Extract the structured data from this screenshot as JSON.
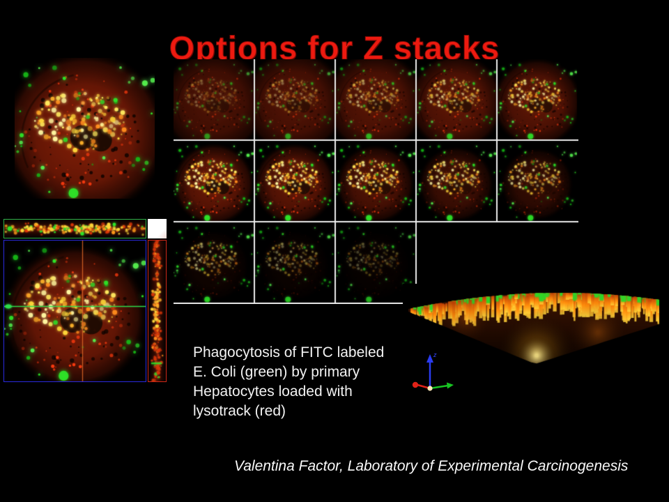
{
  "slide": {
    "title": "Options for Z stacks",
    "caption": "Phagocytosis of FITC labeled\nE. Coli (green) by primary\nHepatocytes loaded with\nlysotrack (red)",
    "credit": "Valentina Factor, Laboratory of Experimental Carcinogenesis"
  },
  "colors": {
    "background": "#000000",
    "title_fill": "#ed1a10",
    "title_outline": "#7e0c06",
    "text_white": "#f2f2f2",
    "grid_line": "#ececec",
    "ortho_top_border": "#2db34a",
    "ortho_main_border": "#2a2ae0",
    "ortho_side_border": "#d02818",
    "crosshair_green": "#2ddc4b",
    "crosshair_orange": "#e06a28",
    "axis_z_blue": "#2a3cf0",
    "axis_x_red": "#e02218",
    "axis_y_green": "#18c422",
    "cell_body_red": "#8a2108",
    "cluster_palette": [
      "#fff7a0",
      "#ffd83a",
      "#ffb32a",
      "#ff8d1d",
      "#ffea5e"
    ],
    "green_palette": [
      "#2ee228",
      "#55f04e",
      "#16b616"
    ]
  },
  "panels": {
    "single_view": {
      "body": 0.95,
      "cluster": 1.0,
      "specks": 0.9,
      "green": 1.0,
      "nuclei": 0.92,
      "bodyR": 0.6
    },
    "ortho_main": {
      "body": 0.9,
      "cluster": 1.0,
      "specks": 0.95,
      "green": 1.0,
      "nuclei": 0.9,
      "bodyR": 0.52
    },
    "montage": {
      "columns": 5,
      "rows": 3,
      "slices": [
        {
          "row": 0,
          "col": 0,
          "body": 0.58,
          "cluster": 0.2,
          "specks": 0.55,
          "green": 0.45,
          "nuclei": 0.5,
          "bodyR": 0.68
        },
        {
          "row": 0,
          "col": 1,
          "body": 0.62,
          "cluster": 0.3,
          "specks": 0.6,
          "green": 0.5,
          "nuclei": 0.55,
          "bodyR": 0.67
        },
        {
          "row": 0,
          "col": 2,
          "body": 0.66,
          "cluster": 0.42,
          "specks": 0.66,
          "green": 0.6,
          "nuclei": 0.6,
          "bodyR": 0.65
        },
        {
          "row": 0,
          "col": 3,
          "body": 0.7,
          "cluster": 0.55,
          "specks": 0.72,
          "green": 0.7,
          "nuclei": 0.65,
          "bodyR": 0.62
        },
        {
          "row": 0,
          "col": 4,
          "body": 0.7,
          "cluster": 0.72,
          "specks": 0.76,
          "green": 0.85,
          "nuclei": 0.7,
          "bodyR": 0.57
        },
        {
          "row": 1,
          "col": 0,
          "body": 0.78,
          "cluster": 1.0,
          "specks": 0.85,
          "green": 1.0,
          "nuclei": 0.85,
          "bodyR": 0.52
        },
        {
          "row": 1,
          "col": 1,
          "body": 0.74,
          "cluster": 0.97,
          "specks": 0.8,
          "green": 1.0,
          "nuclei": 0.8,
          "bodyR": 0.52
        },
        {
          "row": 1,
          "col": 2,
          "body": 0.62,
          "cluster": 0.88,
          "specks": 0.7,
          "green": 0.95,
          "nuclei": 0.7,
          "bodyR": 0.5
        },
        {
          "row": 1,
          "col": 3,
          "body": 0.5,
          "cluster": 0.74,
          "specks": 0.55,
          "green": 0.9,
          "nuclei": 0.55,
          "bodyR": 0.48
        },
        {
          "row": 1,
          "col": 4,
          "body": 0.4,
          "cluster": 0.6,
          "specks": 0.45,
          "green": 0.85,
          "nuclei": 0.4,
          "bodyR": 0.46
        },
        {
          "row": 2,
          "col": 0,
          "body": 0.13,
          "cluster": 0.42,
          "specks": 0.2,
          "green": 0.8,
          "nuclei": 0.12,
          "bodyR": 0.45
        },
        {
          "row": 2,
          "col": 1,
          "body": 0.09,
          "cluster": 0.3,
          "specks": 0.15,
          "green": 0.7,
          "nuclei": 0.08,
          "bodyR": 0.45
        },
        {
          "row": 2,
          "col": 2,
          "body": 0.06,
          "cluster": 0.2,
          "specks": 0.1,
          "green": 0.6,
          "nuclei": 0.05,
          "bodyR": 0.45
        }
      ]
    },
    "axis": {
      "z_label": "z"
    }
  }
}
